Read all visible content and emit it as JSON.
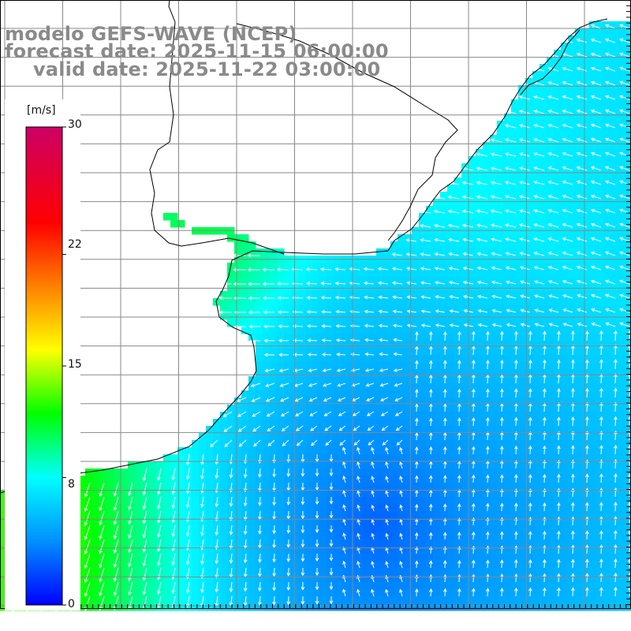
{
  "header": {
    "model": "modelo GEFS-WAVE (NCEP)",
    "forecast": "forecast date: 2025-11-15 06:00:00",
    "valid": "valid date: 2025-11-22 03:00:00"
  },
  "colorbar": {
    "unit": "[m/s]",
    "ticks": [
      {
        "label": "30",
        "value": 30
      },
      {
        "label": "22",
        "value": 22
      },
      {
        "label": "15",
        "value": 15
      },
      {
        "label": "8",
        "value": 8
      },
      {
        "label": "0",
        "value": 0
      }
    ],
    "colors": [
      "#0000ff",
      "#0090ff",
      "#00ffff",
      "#00ff00",
      "#ffff00",
      "#ff8000",
      "#ff0000",
      "#cc0066"
    ]
  },
  "map_style": {
    "land_color": "#ffffff",
    "coast_color": "#000000",
    "grid_color": "#888888",
    "arrow_color": "#ffffff"
  }
}
